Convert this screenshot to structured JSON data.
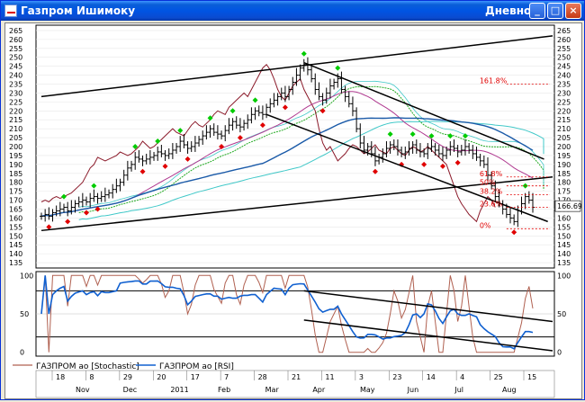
{
  "window": {
    "title": "Газпром Ишимоку",
    "mode": "Дневной",
    "buttons": {
      "minimize": "_",
      "maximize": "□",
      "close": "×"
    }
  },
  "colors": {
    "price_bar": "#000000",
    "trendline": "#000000",
    "line_maroon": "#8b1a2a",
    "line_purple": "#b03a90",
    "line_blue": "#1a5aa8",
    "cloud_green": "#22aa22",
    "cloud_cyan": "#40c8c8",
    "fractal_up": "#00cc00",
    "fractal_down": "#e00000",
    "fib": "#e00000",
    "stoch": "#b06050",
    "rsi": "#1060d0"
  },
  "chart_data": [
    {
      "type": "line",
      "panel": "price",
      "ylim": [
        132,
        268
      ],
      "y_ticks": [
        135,
        140,
        145,
        150,
        155,
        160,
        165,
        170,
        175,
        180,
        185,
        190,
        195,
        200,
        205,
        210,
        215,
        220,
        225,
        230,
        235,
        240,
        245,
        250,
        255,
        260,
        265
      ],
      "last_price_label": "166.69",
      "fib_levels": [
        {
          "label": "161.8%",
          "value": 235
        },
        {
          "label": "61.8%",
          "value": 183
        },
        {
          "label": "50%",
          "value": 178
        },
        {
          "label": "38.2%",
          "value": 173
        },
        {
          "label": "23.6%",
          "value": 166
        },
        {
          "label": "0%",
          "value": 154
        }
      ],
      "ohlc_close_approx": [
        161,
        162,
        161,
        163,
        164,
        165,
        166,
        164,
        166,
        168,
        169,
        170,
        169,
        171,
        172,
        171,
        172,
        173,
        174,
        176,
        178,
        180,
        184,
        188,
        190,
        194,
        193,
        192,
        193,
        194,
        195,
        197,
        196,
        195,
        196,
        198,
        200,
        203,
        201,
        199,
        200,
        202,
        204,
        206,
        208,
        210,
        208,
        207,
        206,
        209,
        212,
        214,
        212,
        211,
        213,
        215,
        218,
        220,
        219,
        218,
        222,
        224,
        226,
        228,
        230,
        228,
        232,
        236,
        240,
        244,
        246,
        243,
        238,
        232,
        228,
        226,
        230,
        234,
        236,
        238,
        232,
        228,
        224,
        220,
        210,
        202,
        198,
        200,
        196,
        192,
        194,
        196,
        199,
        201,
        200,
        198,
        196,
        197,
        199,
        201,
        198,
        197,
        196,
        199,
        200,
        198,
        196,
        195,
        198,
        200,
        199,
        197,
        198,
        200,
        198,
        196,
        194,
        192,
        190,
        184,
        178,
        172,
        168,
        165,
        162,
        160,
        158,
        164,
        168,
        172,
        170,
        166
      ]
    },
    {
      "type": "line",
      "panel": "oscillator",
      "ylim": [
        -5,
        105
      ],
      "y_ticks": [
        0,
        50,
        100
      ],
      "series": [
        {
          "name": "ГАЗПРОМ ао [Stochastic]"
        },
        {
          "name": "ГАЗПРОМ ао [RSI]"
        }
      ],
      "x_day_labels": [
        "18",
        "8",
        "29",
        "20",
        "17",
        "7",
        "28",
        "21",
        "11",
        "3",
        "23",
        "14",
        "4",
        "25",
        "15"
      ],
      "x_month_labels": [
        "Nov",
        "Dec",
        "2011",
        "Feb",
        "Mar",
        "Apr",
        "May",
        "Jun",
        "Jul",
        "Aug"
      ]
    }
  ]
}
